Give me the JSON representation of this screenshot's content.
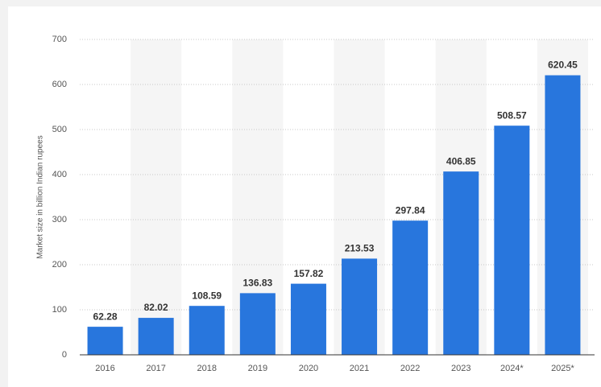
{
  "chart_data": {
    "type": "bar",
    "y_label": "Market size in billion Indian rupees",
    "categories": [
      "2016",
      "2017",
      "2018",
      "2019",
      "2020",
      "2021",
      "2022",
      "2023",
      "2024*",
      "2025*"
    ],
    "values": [
      62.28,
      82.02,
      108.59,
      136.83,
      157.82,
      213.53,
      297.84,
      406.85,
      508.57,
      620.45
    ],
    "color": "#2876dd",
    "ylim": [
      0,
      700
    ],
    "yticks": [
      0,
      100,
      200,
      300,
      400,
      500,
      600,
      700
    ],
    "grid": true
  }
}
